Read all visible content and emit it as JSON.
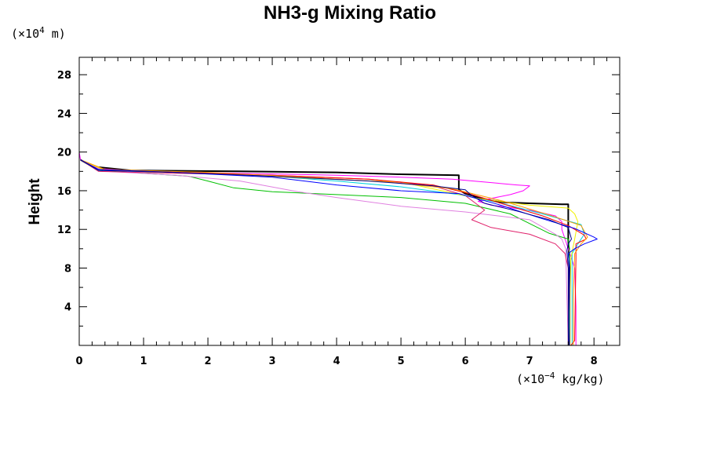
{
  "chart_data": {
    "type": "line",
    "title": "NH3-g Mixing Ratio",
    "ylabel": "Height",
    "xlabel": "",
    "y_unit": {
      "prefix": "(×10",
      "exp": "4",
      "suffix": " m)"
    },
    "x_unit": {
      "prefix": "(×10",
      "exp": "−4",
      "suffix": " kg/kg)"
    },
    "xlim": [
      0,
      8.4
    ],
    "ylim": [
      0,
      29.8
    ],
    "xticks": [
      "0",
      "1",
      "2",
      "3",
      "4",
      "5",
      "6",
      "7",
      "8"
    ],
    "yticks": [
      "4",
      "8",
      "12",
      "16",
      "20",
      "24",
      "28"
    ],
    "xtick_values": [
      0,
      1,
      2,
      3,
      4,
      5,
      6,
      7,
      8
    ],
    "ytick_values": [
      4,
      8,
      12,
      16,
      20,
      24,
      28
    ],
    "grid": false,
    "series": [
      {
        "name": "magenta-top",
        "color": "#ff00ff",
        "width": 1,
        "points": [
          [
            0,
            29.8
          ],
          [
            0,
            20.0
          ],
          [
            0.02,
            19.2
          ]
        ]
      },
      {
        "name": "black",
        "color": "#000000",
        "width": 2,
        "points": [
          [
            0.02,
            19.2
          ],
          [
            0.2,
            18.5
          ],
          [
            0.8,
            18.1
          ],
          [
            2.5,
            18.0
          ],
          [
            4.0,
            17.9
          ],
          [
            5.0,
            17.7
          ],
          [
            5.9,
            17.6
          ],
          [
            5.9,
            16.1
          ],
          [
            6.0,
            15.7
          ],
          [
            6.3,
            15.1
          ],
          [
            6.6,
            14.8
          ],
          [
            7.0,
            14.7
          ],
          [
            7.5,
            14.6
          ],
          [
            7.6,
            14.6
          ],
          [
            7.6,
            11.0
          ],
          [
            7.62,
            8.0
          ],
          [
            7.62,
            0
          ]
        ]
      },
      {
        "name": "magenta",
        "color": "#ff00ff",
        "width": 1,
        "points": [
          [
            0.02,
            19.2
          ],
          [
            0.3,
            18.3
          ],
          [
            1.0,
            18.0
          ],
          [
            2.5,
            17.8
          ],
          [
            4.0,
            17.6
          ],
          [
            5.0,
            17.4
          ],
          [
            5.8,
            17.2
          ],
          [
            6.3,
            16.9
          ],
          [
            6.8,
            16.6
          ],
          [
            7.0,
            16.5
          ],
          [
            6.9,
            16.0
          ],
          [
            6.7,
            15.6
          ],
          [
            6.4,
            15.2
          ],
          [
            6.2,
            14.9
          ],
          [
            6.4,
            14.5
          ],
          [
            7.0,
            14.0
          ],
          [
            7.4,
            13.4
          ],
          [
            7.5,
            12.8
          ],
          [
            7.5,
            12.0
          ],
          [
            7.55,
            11.0
          ],
          [
            7.6,
            10.0
          ],
          [
            7.65,
            9.0
          ],
          [
            7.7,
            8.0
          ],
          [
            7.72,
            4.0
          ],
          [
            7.72,
            0
          ]
        ]
      },
      {
        "name": "green",
        "color": "#00c000",
        "width": 1,
        "points": [
          [
            0.02,
            19.2
          ],
          [
            0.3,
            18.1
          ],
          [
            1.0,
            17.8
          ],
          [
            1.7,
            17.5
          ],
          [
            2.0,
            17.0
          ],
          [
            2.4,
            16.3
          ],
          [
            3.0,
            15.9
          ],
          [
            4.0,
            15.6
          ],
          [
            5.0,
            15.3
          ],
          [
            6.0,
            14.7
          ],
          [
            6.7,
            13.6
          ],
          [
            7.0,
            12.6
          ],
          [
            7.3,
            11.6
          ],
          [
            7.6,
            11.0
          ],
          [
            7.62,
            10.0
          ],
          [
            7.62,
            5.0
          ],
          [
            7.6,
            0
          ]
        ]
      },
      {
        "name": "violet",
        "color": "#e080e0",
        "width": 1,
        "points": [
          [
            0.02,
            19.2
          ],
          [
            0.4,
            18.0
          ],
          [
            1.5,
            17.6
          ],
          [
            2.5,
            17.0
          ],
          [
            3.4,
            15.9
          ],
          [
            4.0,
            15.3
          ],
          [
            5.0,
            14.4
          ],
          [
            6.0,
            13.8
          ],
          [
            7.0,
            13.0
          ],
          [
            7.4,
            11.5
          ],
          [
            7.5,
            11.0
          ],
          [
            7.56,
            10.0
          ],
          [
            7.58,
            5.0
          ],
          [
            7.6,
            0
          ]
        ]
      },
      {
        "name": "crimson",
        "color": "#e0206a",
        "width": 1,
        "points": [
          [
            0.02,
            19.2
          ],
          [
            0.3,
            18.0
          ],
          [
            1.5,
            17.8
          ],
          [
            3.0,
            17.6
          ],
          [
            4.5,
            17.2
          ],
          [
            5.5,
            16.5
          ],
          [
            6.0,
            15.5
          ],
          [
            6.3,
            14.0
          ],
          [
            6.1,
            13.0
          ],
          [
            6.4,
            12.2
          ],
          [
            7.0,
            11.5
          ],
          [
            7.4,
            10.5
          ],
          [
            7.55,
            9.5
          ],
          [
            7.6,
            8.0
          ],
          [
            7.6,
            0
          ]
        ]
      },
      {
        "name": "cyan",
        "color": "#00d0e0",
        "width": 1,
        "points": [
          [
            0.02,
            19.2
          ],
          [
            0.3,
            18.1
          ],
          [
            1.5,
            17.9
          ],
          [
            3.0,
            17.5
          ],
          [
            4.0,
            17.0
          ],
          [
            5.0,
            16.4
          ],
          [
            5.9,
            15.6
          ],
          [
            6.5,
            14.8
          ],
          [
            7.2,
            13.6
          ],
          [
            7.8,
            12.5
          ],
          [
            7.85,
            11.5
          ],
          [
            7.75,
            10.5
          ],
          [
            7.66,
            9.5
          ],
          [
            7.66,
            5.0
          ],
          [
            7.66,
            0
          ]
        ]
      },
      {
        "name": "yellow",
        "color": "#f0f000",
        "width": 1,
        "points": [
          [
            0.02,
            19.2
          ],
          [
            0.4,
            18.1
          ],
          [
            2.0,
            17.8
          ],
          [
            3.5,
            17.3
          ],
          [
            5.0,
            16.9
          ],
          [
            6.2,
            15.2
          ],
          [
            7.0,
            14.5
          ],
          [
            7.6,
            14.2
          ],
          [
            7.7,
            13.6
          ],
          [
            7.75,
            12.8
          ],
          [
            7.7,
            11.0
          ],
          [
            7.64,
            9.0
          ],
          [
            7.63,
            5.0
          ],
          [
            7.63,
            0
          ]
        ]
      },
      {
        "name": "red",
        "color": "#ff0000",
        "width": 1,
        "points": [
          [
            0.02,
            19.2
          ],
          [
            0.3,
            18.2
          ],
          [
            1.5,
            17.9
          ],
          [
            3.0,
            17.6
          ],
          [
            4.5,
            17.2
          ],
          [
            5.5,
            16.6
          ],
          [
            6.0,
            15.8
          ],
          [
            6.5,
            14.8
          ],
          [
            7.2,
            13.4
          ],
          [
            7.6,
            12.4
          ],
          [
            7.85,
            11.4
          ],
          [
            7.88,
            11.0
          ],
          [
            7.72,
            10.5
          ],
          [
            7.72,
            9.0
          ],
          [
            7.7,
            0.5
          ],
          [
            7.64,
            0
          ]
        ]
      },
      {
        "name": "orange",
        "color": "#ff9900",
        "width": 1,
        "points": [
          [
            0.02,
            19.2
          ],
          [
            0.4,
            18.2
          ],
          [
            2.0,
            17.9
          ],
          [
            3.5,
            17.4
          ],
          [
            4.8,
            16.9
          ],
          [
            5.8,
            16.2
          ],
          [
            6.6,
            14.9
          ],
          [
            7.3,
            13.5
          ],
          [
            7.8,
            12.4
          ],
          [
            7.9,
            11.2
          ],
          [
            7.8,
            10.5
          ],
          [
            7.7,
            9.5
          ],
          [
            7.68,
            5.0
          ],
          [
            7.68,
            0
          ]
        ]
      },
      {
        "name": "blue",
        "color": "#0000ff",
        "width": 1,
        "points": [
          [
            0.02,
            19.2
          ],
          [
            0.3,
            18.2
          ],
          [
            1.5,
            17.9
          ],
          [
            3.0,
            17.4
          ],
          [
            4.0,
            16.6
          ],
          [
            5.0,
            16.0
          ],
          [
            5.9,
            15.7
          ],
          [
            6.5,
            14.6
          ],
          [
            7.2,
            13.1
          ],
          [
            7.7,
            12.1
          ],
          [
            8.0,
            11.2
          ],
          [
            8.05,
            11.0
          ],
          [
            7.85,
            10.5
          ],
          [
            7.7,
            10.0
          ],
          [
            7.6,
            9.5
          ],
          [
            7.62,
            8.0
          ],
          [
            7.62,
            0
          ]
        ]
      },
      {
        "name": "navy",
        "color": "#000090",
        "width": 1,
        "points": [
          [
            0.02,
            19.2
          ],
          [
            0.3,
            18.1
          ],
          [
            1.5,
            17.9
          ],
          [
            3.0,
            17.5
          ],
          [
            4.5,
            17.0
          ],
          [
            5.5,
            16.5
          ],
          [
            6.0,
            16.1
          ],
          [
            6.1,
            15.5
          ],
          [
            6.3,
            14.7
          ],
          [
            6.8,
            13.9
          ],
          [
            7.3,
            13.0
          ],
          [
            7.6,
            12.2
          ],
          [
            7.65,
            11.0
          ],
          [
            7.6,
            10.5
          ],
          [
            7.58,
            9.8
          ],
          [
            7.6,
            8.0
          ],
          [
            7.6,
            0
          ]
        ]
      }
    ]
  }
}
